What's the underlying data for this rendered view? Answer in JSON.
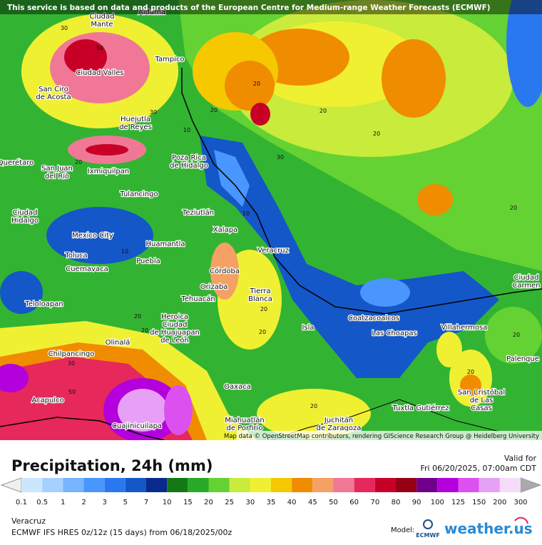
{
  "banner": "This service is based on data and products of the European Centre for Medium-range Weather Forecasts (ECMWF)",
  "attribution": "Map data © OpenStreetMap contributors, rendering GIScience Research Group @ Heidelberg University",
  "cities": [
    {
      "lines": [
        "Ciudad",
        "Mante"
      ]
    },
    {
      "lines": [
        "Aldama"
      ]
    },
    {
      "lines": [
        "Tampico"
      ]
    },
    {
      "lines": [
        "Ciudad Valles"
      ]
    },
    {
      "lines": [
        "San Ciro",
        "de Acosta"
      ]
    },
    {
      "lines": [
        "Huejutla",
        "de Reyes"
      ]
    },
    {
      "lines": [
        "Poza Rica",
        "de Hidalgo"
      ]
    },
    {
      "lines": [
        "Querétaro"
      ]
    },
    {
      "lines": [
        "San Juan",
        "del Río"
      ]
    },
    {
      "lines": [
        "Ixmiquilpan"
      ]
    },
    {
      "lines": [
        "Tulancingo"
      ]
    },
    {
      "lines": [
        "Ciudad",
        "Hidalgo"
      ]
    },
    {
      "lines": [
        "Teziutlán"
      ]
    },
    {
      "lines": [
        "Xalapa"
      ]
    },
    {
      "lines": [
        "Mexico City"
      ]
    },
    {
      "lines": [
        "Huamantla"
      ]
    },
    {
      "lines": [
        "Veracruz"
      ]
    },
    {
      "lines": [
        "Toluca"
      ]
    },
    {
      "lines": [
        "Puebla"
      ]
    },
    {
      "lines": [
        "Cuernavaca"
      ]
    },
    {
      "lines": [
        "Córdoba"
      ]
    },
    {
      "lines": [
        "Orizaba"
      ]
    },
    {
      "lines": [
        "Tierra",
        "Blanca"
      ]
    },
    {
      "lines": [
        "Tehuacán"
      ]
    },
    {
      "lines": [
        "Teloloapan"
      ]
    },
    {
      "lines": [
        "Coatzacoalcos"
      ]
    },
    {
      "lines": [
        "Heroica",
        "Ciudad",
        "de Huajuapan",
        "de León"
      ]
    },
    {
      "lines": [
        "Isla"
      ]
    },
    {
      "lines": [
        "Villahermosa"
      ]
    },
    {
      "lines": [
        "Las Choapas"
      ]
    },
    {
      "lines": [
        "Olinalá"
      ]
    },
    {
      "lines": [
        "Chilpancingo"
      ]
    },
    {
      "lines": [
        "Palenque"
      ]
    },
    {
      "lines": [
        "Oaxaca"
      ]
    },
    {
      "lines": [
        "San Cristóbal",
        "de Las",
        "Casas"
      ]
    },
    {
      "lines": [
        "Acapulco"
      ]
    },
    {
      "lines": [
        "Tuxtla Gutiérrez"
      ]
    },
    {
      "lines": [
        "Cuajinicuilapa"
      ]
    },
    {
      "lines": [
        "Miahuatlán",
        "de Porfirio"
      ]
    },
    {
      "lines": [
        "Juchitán",
        "de Zaragoza"
      ]
    },
    {
      "lines": [
        "Ciudad",
        "Carmen"
      ]
    }
  ],
  "contour_labels": [
    "30",
    "50",
    "30",
    "20",
    "20",
    "10",
    "30",
    "20",
    "10",
    "20",
    "20",
    "10",
    "20",
    "20",
    "30",
    "20",
    "20",
    "20",
    "50",
    "20",
    "20",
    "20"
  ],
  "legend": {
    "title": "Precipitation, 24h (mm)",
    "labels": [
      "0.1",
      "0.5",
      "1",
      "2",
      "3",
      "5",
      "7",
      "10",
      "15",
      "20",
      "25",
      "30",
      "35",
      "40",
      "45",
      "50",
      "60",
      "70",
      "80",
      "90",
      "100",
      "125",
      "150",
      "200",
      "300"
    ],
    "colors": [
      "#cde6ff",
      "#a5d0ff",
      "#78b4ff",
      "#4a96ff",
      "#2a78f0",
      "#1457c8",
      "#0a2a8c",
      "#147814",
      "#28aa28",
      "#64d232",
      "#c8eb3c",
      "#f0f032",
      "#f5c800",
      "#f08c00",
      "#f5a064",
      "#f07896",
      "#e6285a",
      "#c80028",
      "#960014",
      "#6e008c",
      "#b400dc",
      "#dc50f0",
      "#e6a0f5",
      "#f5dcfa"
    ]
  },
  "valid_label": "Valid for",
  "valid_time": "Fri 06/20/2025, 07:00am CDT",
  "location": "Veracruz",
  "model_run": "ECMWF IFS HRES 0z/12z (15 days) from  06/18/2025/00z",
  "model_label": "Model:",
  "model_logo": "ECMWF",
  "brand": "weather.us"
}
